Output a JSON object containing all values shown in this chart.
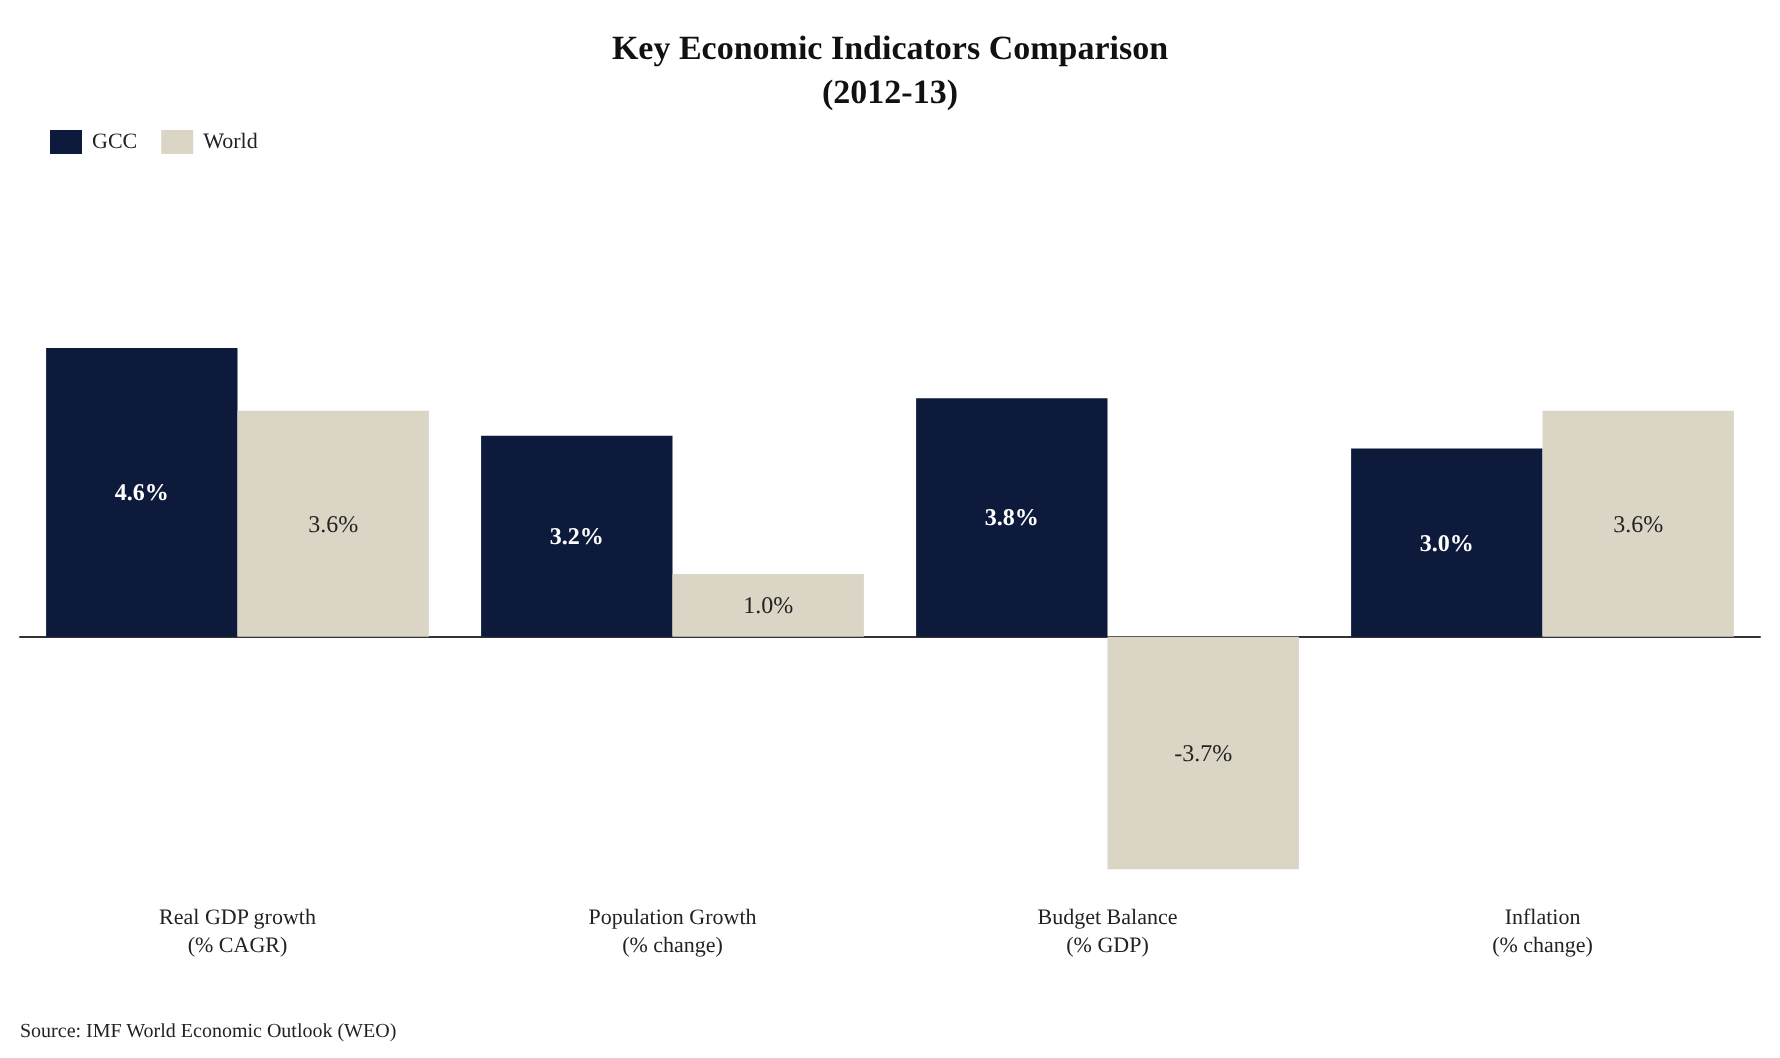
{
  "chart_data": {
    "type": "bar",
    "title": "Key Economic Indicators Comparison\n(2012-13)",
    "categories": [
      "Real GDP growth\n(% CAGR)",
      "Population Growth\n(% change)",
      "Budget Balance\n(% GDP)",
      "Inflation\n(% change)"
    ],
    "series": [
      {
        "name": "GCC",
        "color": "#0e1a3b",
        "values": [
          4.6,
          3.2,
          3.8,
          3.0
        ],
        "value_labels": [
          "4.6%",
          "3.2%",
          "3.8%",
          "3.0%"
        ]
      },
      {
        "name": "World",
        "color": "#dbd5c5",
        "values": [
          3.6,
          1.0,
          -3.7,
          3.6
        ],
        "value_labels": [
          "3.6%",
          "1.0%",
          "-3.7%",
          "3.6%"
        ]
      }
    ],
    "legend": "top left",
    "annotations": [
      "Source: IMF World Economic Outlook (WEO)"
    ]
  }
}
